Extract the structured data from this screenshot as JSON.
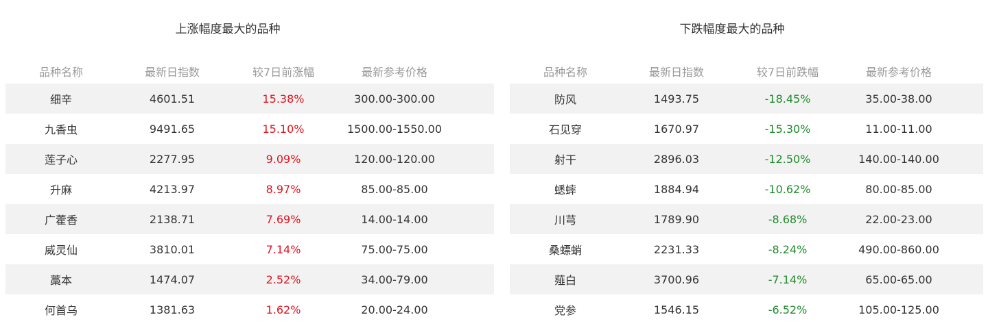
{
  "colors": {
    "up": "#e0141e",
    "down": "#1f8a2a",
    "stripe": "#f2f2f2"
  },
  "rise": {
    "title": "上涨幅度最大的品种",
    "headers": [
      "品种名称",
      "最新日指数",
      "较7日前涨幅",
      "最新参考价格"
    ],
    "rows": [
      [
        "细辛",
        "4601.51",
        "15.38%",
        "300.00-300.00"
      ],
      [
        "九香虫",
        "9491.65",
        "15.10%",
        "1500.00-1550.00"
      ],
      [
        "莲子心",
        "2277.95",
        "9.09%",
        "120.00-120.00"
      ],
      [
        "升麻",
        "4213.97",
        "8.97%",
        "85.00-85.00"
      ],
      [
        "广藿香",
        "2138.71",
        "7.69%",
        "14.00-14.00"
      ],
      [
        "威灵仙",
        "3810.01",
        "7.14%",
        "75.00-75.00"
      ],
      [
        "藁本",
        "1474.07",
        "2.52%",
        "34.00-79.00"
      ],
      [
        "何首乌",
        "1381.63",
        "1.62%",
        "20.00-24.00"
      ]
    ]
  },
  "fall": {
    "title": "下跌幅度最大的品种",
    "headers": [
      "品种名称",
      "最新日指数",
      "较7日前跌幅",
      "最新参考价格"
    ],
    "rows": [
      [
        "防风",
        "1493.75",
        "-18.45%",
        "35.00-38.00"
      ],
      [
        "石见穿",
        "1670.97",
        "-15.30%",
        "11.00-11.00"
      ],
      [
        "射干",
        "2896.03",
        "-12.50%",
        "140.00-140.00"
      ],
      [
        "蟋蟀",
        "1884.94",
        "-10.62%",
        "80.00-85.00"
      ],
      [
        "川芎",
        "1789.90",
        "-8.68%",
        "22.00-23.00"
      ],
      [
        "桑螵蛸",
        "2231.33",
        "-8.24%",
        "490.00-860.00"
      ],
      [
        "薤白",
        "3700.96",
        "-7.14%",
        "65.00-65.00"
      ],
      [
        "党参",
        "1546.15",
        "-6.52%",
        "105.00-125.00"
      ]
    ]
  }
}
